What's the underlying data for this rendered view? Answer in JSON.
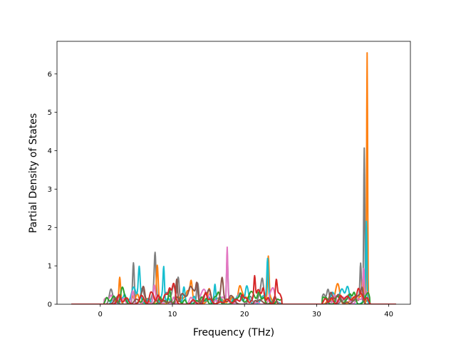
{
  "chart_data": {
    "type": "line",
    "xlabel": "Frequency (THz)",
    "ylabel": "Partial Density of States",
    "xlim": [
      -6,
      43
    ],
    "ylim": [
      0,
      6.85
    ],
    "xticks": [
      {
        "value": 0,
        "label": "0"
      },
      {
        "value": 10,
        "label": "10"
      },
      {
        "value": 20,
        "label": "20"
      },
      {
        "value": 30,
        "label": "30"
      },
      {
        "value": 40,
        "label": "40"
      }
    ],
    "yticks": [
      {
        "value": 0,
        "label": "0"
      },
      {
        "value": 1,
        "label": "1"
      },
      {
        "value": 2,
        "label": "2"
      },
      {
        "value": 3,
        "label": "3"
      },
      {
        "value": 4,
        "label": "4"
      },
      {
        "value": 5,
        "label": "5"
      },
      {
        "value": 6,
        "label": "6"
      }
    ],
    "grid": false,
    "legend": "none",
    "series": [
      {
        "color": "#7f7f7f",
        "peaks": [
          [
            4.6,
            1.08,
            0.12
          ],
          [
            7.6,
            1.22,
            0.12
          ],
          [
            10.8,
            0.62,
            0.15
          ],
          [
            13.5,
            0.55,
            0.15
          ],
          [
            17.6,
            1.12,
            0.1
          ],
          [
            22.5,
            0.35,
            0.2
          ],
          [
            36.6,
            4.05,
            0.08
          ],
          [
            36.1,
            1.0,
            0.1
          ],
          [
            34.5,
            0.25,
            0.3
          ]
        ]
      },
      {
        "color": "#ff7f0e",
        "peaks": [
          [
            2.7,
            0.7,
            0.12
          ],
          [
            7.9,
            0.92,
            0.12
          ],
          [
            12.6,
            0.45,
            0.15
          ],
          [
            15.1,
            0.35,
            0.2
          ],
          [
            19.3,
            0.3,
            0.2
          ],
          [
            23.3,
            1.05,
            0.1
          ],
          [
            37.0,
            6.55,
            0.07
          ],
          [
            36.4,
            0.6,
            0.1
          ]
        ]
      },
      {
        "color": "#17becf",
        "peaks": [
          [
            5.4,
            0.65,
            0.12
          ],
          [
            8.8,
            0.82,
            0.1
          ],
          [
            11.6,
            0.45,
            0.15
          ],
          [
            15.9,
            0.52,
            0.12
          ],
          [
            20.3,
            0.35,
            0.2
          ],
          [
            23.2,
            0.95,
            0.1
          ],
          [
            36.9,
            2.1,
            0.08
          ],
          [
            33.5,
            0.2,
            0.3
          ]
        ]
      },
      {
        "color": "#e377c2",
        "peaks": [
          [
            4.5,
            0.35,
            0.15
          ],
          [
            7.5,
            0.5,
            0.15
          ],
          [
            17.6,
            1.22,
            0.08
          ],
          [
            24.0,
            0.3,
            0.2
          ],
          [
            36.5,
            0.8,
            0.1
          ]
        ]
      },
      {
        "color": "#2ca02c",
        "peaks": [
          [
            3.0,
            0.25,
            0.2
          ],
          [
            9.6,
            0.38,
            0.15
          ],
          [
            16.4,
            0.3,
            0.2
          ],
          [
            22.0,
            0.25,
            0.2
          ],
          [
            35.2,
            0.3,
            0.2
          ]
        ]
      },
      {
        "color": "#8c564b",
        "peaks": [
          [
            6.0,
            0.3,
            0.2
          ],
          [
            10.6,
            0.65,
            0.12
          ],
          [
            13.4,
            0.5,
            0.15
          ],
          [
            16.9,
            0.45,
            0.15
          ],
          [
            24.2,
            0.2,
            0.2
          ],
          [
            36.3,
            0.35,
            0.15
          ]
        ]
      },
      {
        "color": "#d62728",
        "peaks": [
          [
            2.6,
            0.25,
            0.25
          ],
          [
            7.0,
            0.3,
            0.2
          ],
          [
            10.2,
            0.35,
            0.2
          ],
          [
            14.6,
            0.3,
            0.2
          ],
          [
            21.4,
            0.55,
            0.1
          ],
          [
            22.6,
            0.3,
            0.15
          ],
          [
            24.4,
            0.48,
            0.12
          ],
          [
            35.8,
            0.3,
            0.2
          ],
          [
            37.0,
            0.15,
            0.2
          ]
        ]
      }
    ]
  }
}
